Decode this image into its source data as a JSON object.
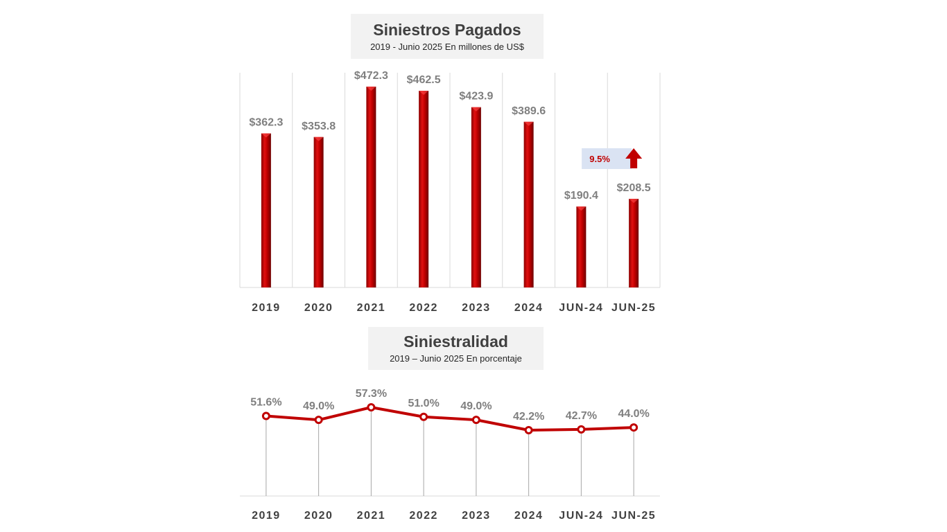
{
  "colors": {
    "bar": "#c00000",
    "line": "#c00000",
    "label": "#7f7f7f",
    "axis": "#404040",
    "callout_bg": "#dae3f3"
  },
  "chart_data": [
    {
      "type": "bar",
      "title": "Siniestros Pagados",
      "subtitle": "2019 - Junio 2025 En millones de US$",
      "categories": [
        "2019",
        "2020",
        "2021",
        "2022",
        "2023",
        "2024",
        "JUN-24",
        "JUN-25"
      ],
      "values": [
        362.3,
        353.8,
        472.3,
        462.5,
        423.9,
        389.6,
        190.4,
        208.5
      ],
      "labels": [
        "$362.3",
        "$353.8",
        "$472.3",
        "$462.5",
        "$423.9",
        "$389.6",
        "$190.4",
        "$208.5"
      ],
      "ylim": [
        0,
        500
      ],
      "grid": "vertical",
      "annotation": {
        "text": "9.5%",
        "icon": "up-arrow-icon"
      }
    },
    {
      "type": "line",
      "title": "Siniestralidad",
      "subtitle": "2019 –  Junio 2025 En porcentaje",
      "categories": [
        "2019",
        "2020",
        "2021",
        "2022",
        "2023",
        "2024",
        "JUN-24",
        "JUN-25"
      ],
      "values": [
        51.6,
        49.0,
        57.3,
        51.0,
        49.0,
        42.2,
        42.7,
        44.0
      ],
      "labels": [
        "51.6%",
        "49.0%",
        "57.3%",
        "51.0%",
        "49.0%",
        "42.2%",
        "42.7%",
        "44.0%"
      ],
      "drop_lines": true
    }
  ]
}
